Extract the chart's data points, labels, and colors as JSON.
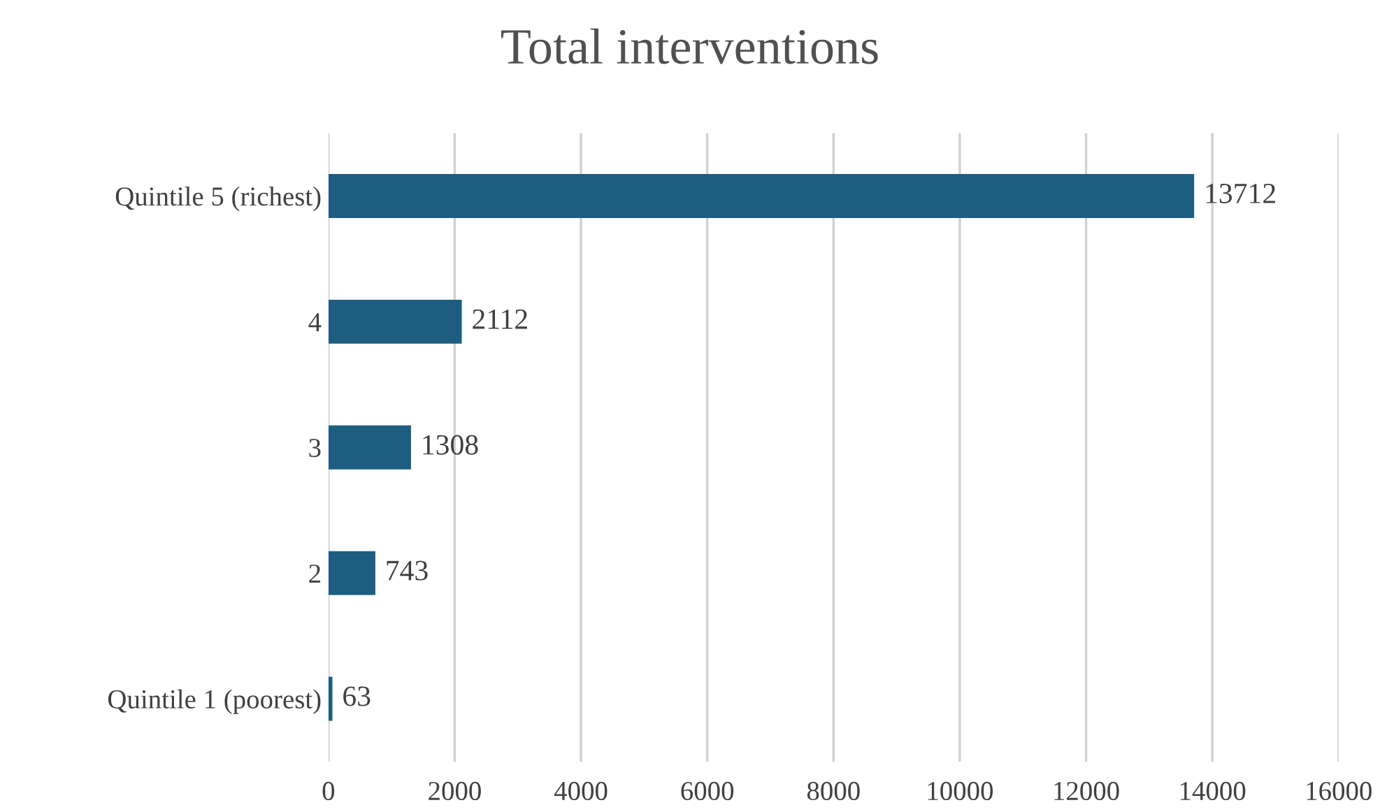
{
  "chart_data": {
    "type": "bar",
    "orientation": "horizontal",
    "title": "Total interventions",
    "categories": [
      "Quintile 5 (richest)",
      "4",
      "3",
      "2",
      "Quintile 1 (poorest)"
    ],
    "values": [
      13712,
      2112,
      1308,
      743,
      63
    ],
    "color": "#1d5e80",
    "xlim": [
      0,
      16000
    ],
    "xticks": [
      0,
      2000,
      4000,
      6000,
      8000,
      10000,
      12000,
      14000,
      16000
    ],
    "grid": "x",
    "data_labels": true
  }
}
